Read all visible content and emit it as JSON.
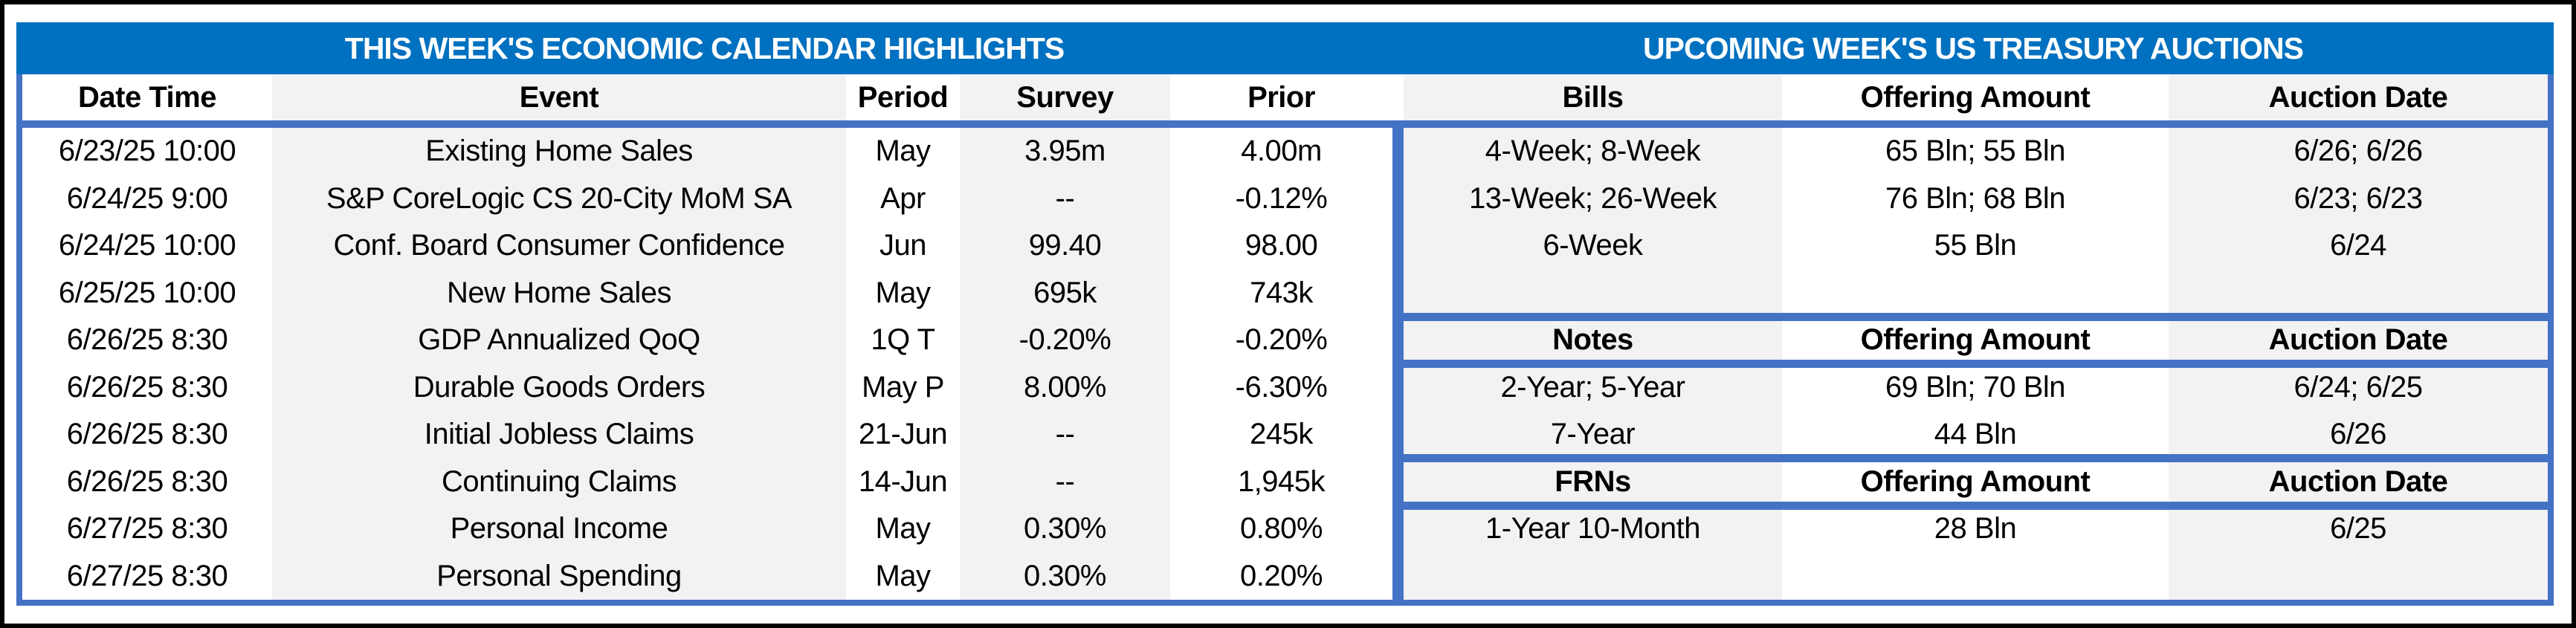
{
  "titles": {
    "calendar": "THIS WEEK'S ECONOMIC CALENDAR HIGHLIGHTS",
    "auctions": "UPCOMING WEEK'S US TREASURY AUCTIONS"
  },
  "calendar": {
    "columns": {
      "date": "Date Time",
      "event": "Event",
      "period": "Period",
      "survey": "Survey",
      "prior": "Prior"
    },
    "rows": [
      {
        "date": "6/23/25 10:00",
        "event": "Existing Home Sales",
        "period": "May",
        "survey": "3.95m",
        "prior": "4.00m"
      },
      {
        "date": "6/24/25 9:00",
        "event": "S&P CoreLogic CS 20-City MoM SA",
        "period": "Apr",
        "survey": "--",
        "prior": "-0.12%"
      },
      {
        "date": "6/24/25 10:00",
        "event": "Conf. Board Consumer Confidence",
        "period": "Jun",
        "survey": "99.40",
        "prior": "98.00"
      },
      {
        "date": "6/25/25 10:00",
        "event": "New Home Sales",
        "period": "May",
        "survey": "695k",
        "prior": "743k"
      },
      {
        "date": "6/26/25 8:30",
        "event": "GDP Annualized QoQ",
        "period": "1Q T",
        "survey": "-0.20%",
        "prior": "-0.20%"
      },
      {
        "date": "6/26/25 8:30",
        "event": "Durable Goods Orders",
        "period": "May P",
        "survey": "8.00%",
        "prior": "-6.30%"
      },
      {
        "date": "6/26/25 8:30",
        "event": "Initial Jobless Claims",
        "period": "21-Jun",
        "survey": "--",
        "prior": "245k"
      },
      {
        "date": "6/26/25 8:30",
        "event": "Continuing Claims",
        "period": "14-Jun",
        "survey": "--",
        "prior": "1,945k"
      },
      {
        "date": "6/27/25 8:30",
        "event": "Personal Income",
        "period": "May",
        "survey": "0.30%",
        "prior": "0.80%"
      },
      {
        "date": "6/27/25 8:30",
        "event": "Personal Spending",
        "period": "May",
        "survey": "0.30%",
        "prior": "0.20%"
      }
    ]
  },
  "auctions": {
    "amount_header": "Offering Amount",
    "date_header": "Auction Date",
    "sections": [
      {
        "label": "Bills",
        "rows": [
          {
            "security": "4-Week; 8-Week",
            "amount": "65 Bln; 55 Bln",
            "date": "6/26; 6/26"
          },
          {
            "security": "13-Week; 26-Week",
            "amount": "76 Bln; 68 Bln",
            "date": "6/23; 6/23"
          },
          {
            "security": "6-Week",
            "amount": "55 Bln",
            "date": "6/24"
          }
        ]
      },
      {
        "label": "Notes",
        "rows": [
          {
            "security": "2-Year; 5-Year",
            "amount": "69 Bln; 70 Bln",
            "date": "6/24; 6/25"
          },
          {
            "security": "7-Year",
            "amount": "44 Bln",
            "date": "6/26"
          }
        ]
      },
      {
        "label": "FRNs",
        "rows": [
          {
            "security": "1-Year 10-Month",
            "amount": "28 Bln",
            "date": "6/25"
          }
        ]
      }
    ]
  },
  "colors": {
    "header_bar": "#0070C0",
    "accent_border": "#4472C4",
    "stripe": "#F2F2F2",
    "text": "#000000"
  }
}
